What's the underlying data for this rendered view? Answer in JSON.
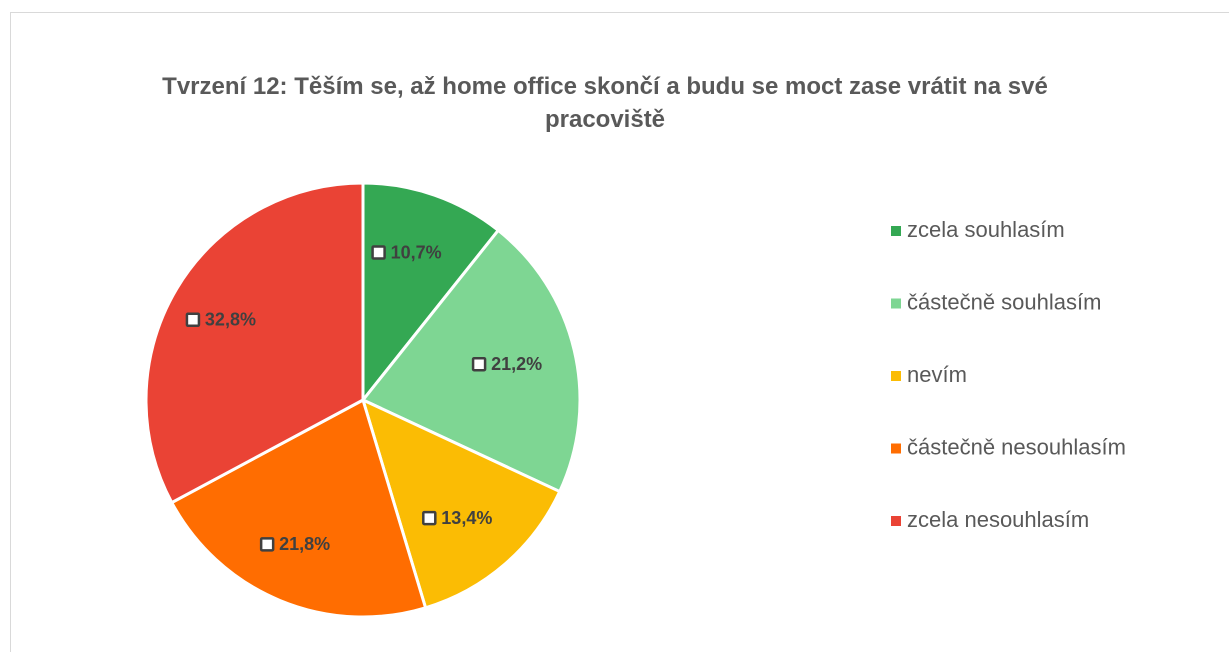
{
  "chart_data": {
    "type": "pie",
    "title": "Tvrzení 12: Těším se, až home office skončí a budu se moct zase vrátit na své pracoviště",
    "categories": [
      "zcela souhlasím",
      "částečně souhlasím",
      "nevím",
      "částečně nesouhlasím",
      "zcela nesouhlasím"
    ],
    "values": [
      10.7,
      21.2,
      13.4,
      21.8,
      32.8
    ],
    "value_labels": [
      "10,7%",
      "21,2%",
      "13,4%",
      "21,8%",
      "32,8%"
    ],
    "colors": [
      "#34a853",
      "#7ed693",
      "#fbbc04",
      "#ff6d01",
      "#ea4335"
    ],
    "legend": "right"
  }
}
